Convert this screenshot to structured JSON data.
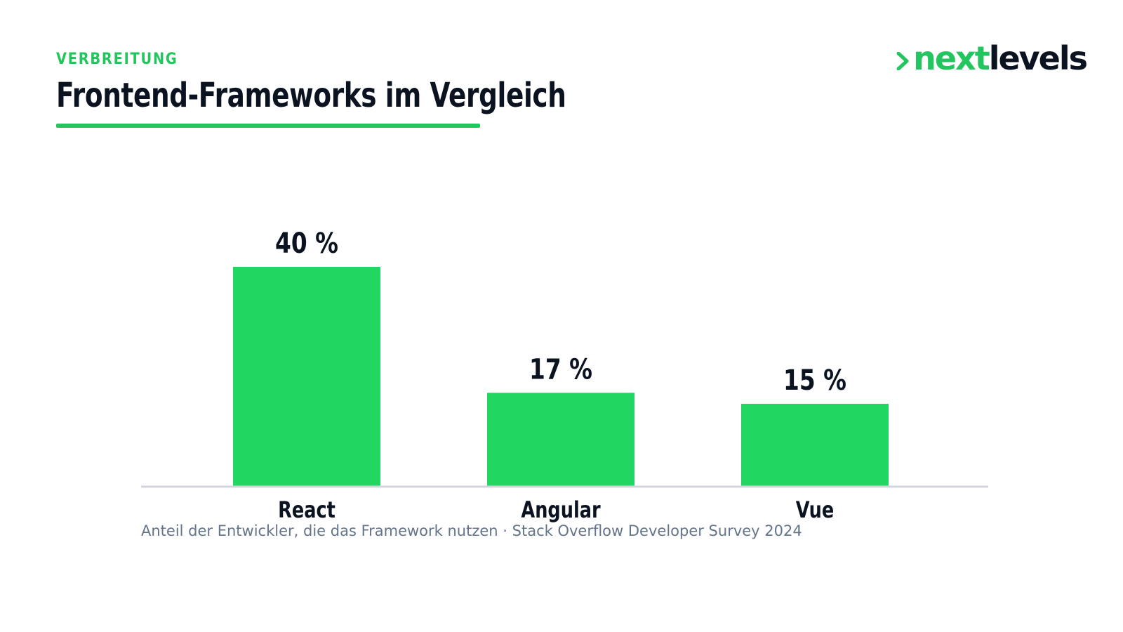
{
  "header": {
    "eyebrow": "VERBREITUNG",
    "title": "Frontend-Frameworks im Vergleich"
  },
  "logo": {
    "part1": "next",
    "part2": "levels",
    "icon": "chevron-right-icon"
  },
  "colors": {
    "accent": "#22c55e",
    "bar": "#22d662",
    "text": "#0b1220",
    "muted": "#64748b",
    "baseline": "#d1d5db"
  },
  "chart_data": {
    "type": "bar",
    "categories": [
      "React",
      "Angular",
      "Vue"
    ],
    "values": [
      40,
      17,
      15
    ],
    "value_suffix": "%",
    "value_labels": [
      "40 %",
      "17 %",
      "15 %"
    ],
    "ylim": [
      0,
      40
    ],
    "grid": false,
    "legend": "none",
    "caption": "Anteil der Entwickler, die das Framework nutzen · Stack Overflow Developer Survey 2024"
  }
}
